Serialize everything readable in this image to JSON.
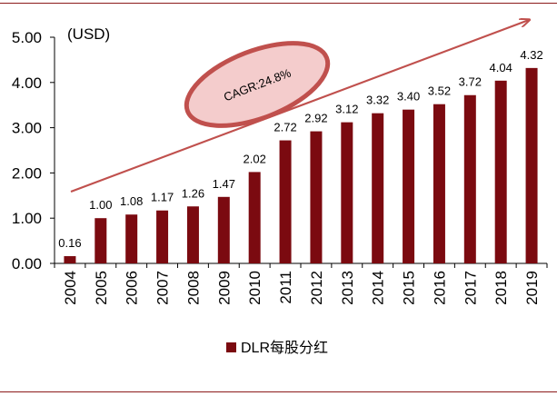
{
  "chart_data": {
    "type": "bar",
    "unit_label": "(USD)",
    "categories": [
      "2004",
      "2005",
      "2006",
      "2007",
      "2008",
      "2009",
      "2010",
      "2011",
      "2012",
      "2013",
      "2014",
      "2015",
      "2016",
      "2017",
      "2018",
      "2019"
    ],
    "series": [
      {
        "name": "DLR每股分红",
        "values": [
          0.16,
          1.0,
          1.08,
          1.17,
          1.26,
          1.47,
          2.02,
          2.72,
          2.92,
          3.12,
          3.32,
          3.4,
          3.52,
          3.72,
          4.04,
          4.32
        ],
        "labels": [
          "0.16",
          "1.00",
          "1.08",
          "1.17",
          "1.26",
          "1.47",
          "2.02",
          "2.72",
          "2.92",
          "3.12",
          "3.32",
          "3.40",
          "3.52",
          "3.72",
          "4.04",
          "4.32"
        ]
      }
    ],
    "ylim": [
      0,
      5
    ],
    "yticks": [
      "0.00",
      "1.00",
      "2.00",
      "3.00",
      "4.00",
      "5.00"
    ],
    "grid": false,
    "legend_position": "bottom",
    "annotation": "CAGR:24.8%",
    "colors": {
      "bar": "#7b0a10",
      "arrow": "#c0504d",
      "ellipse_fill": "#f4cccc",
      "ellipse_stroke": "#c0504d",
      "frame": "#8b1a1a"
    }
  }
}
